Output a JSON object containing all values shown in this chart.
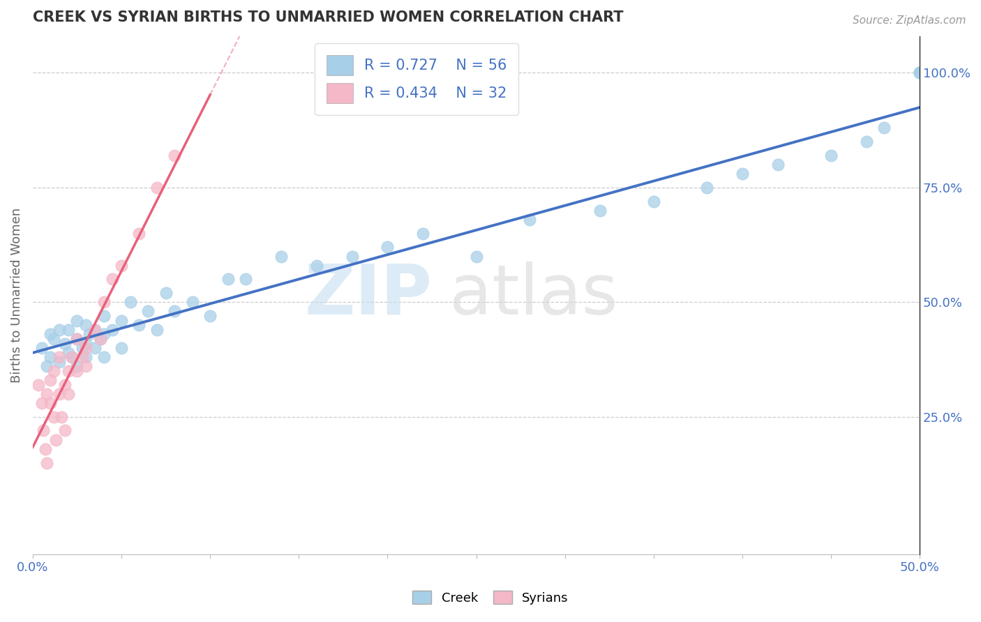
{
  "title": "CREEK VS SYRIAN BIRTHS TO UNMARRIED WOMEN CORRELATION CHART",
  "source_text": "Source: ZipAtlas.com",
  "ylabel": "Births to Unmarried Women",
  "xlim": [
    0.0,
    0.5
  ],
  "ylim": [
    -0.05,
    1.08
  ],
  "creek_R": "0.727",
  "creek_N": "56",
  "syrian_R": "0.434",
  "syrian_N": "32",
  "creek_color": "#a8cfe8",
  "syrian_color": "#f4b8c8",
  "creek_line_color": "#4472c4",
  "syrian_line_color": "#e8607a",
  "legend_creek_label": "Creek",
  "legend_syrian_label": "Syrians",
  "ytick_positions": [
    0.25,
    0.5,
    0.75,
    1.0
  ],
  "ytick_labels": [
    "25.0%",
    "50.0%",
    "75.0%",
    "100.0%"
  ],
  "xtick_positions": [
    0.0,
    0.05,
    0.1,
    0.15,
    0.2,
    0.25,
    0.3,
    0.35,
    0.4,
    0.45,
    0.5
  ],
  "creek_scatter_x": [
    0.005,
    0.008,
    0.01,
    0.01,
    0.012,
    0.015,
    0.015,
    0.018,
    0.02,
    0.02,
    0.022,
    0.025,
    0.025,
    0.025,
    0.028,
    0.03,
    0.03,
    0.03,
    0.032,
    0.035,
    0.035,
    0.038,
    0.04,
    0.04,
    0.04,
    0.045,
    0.05,
    0.05,
    0.055,
    0.06,
    0.065,
    0.07,
    0.075,
    0.08,
    0.09,
    0.1,
    0.11,
    0.12,
    0.14,
    0.16,
    0.18,
    0.2,
    0.22,
    0.25,
    0.28,
    0.32,
    0.35,
    0.38,
    0.4,
    0.42,
    0.45,
    0.47,
    0.48,
    0.5,
    0.5,
    0.5
  ],
  "creek_scatter_y": [
    0.4,
    0.36,
    0.38,
    0.43,
    0.42,
    0.37,
    0.44,
    0.41,
    0.39,
    0.44,
    0.38,
    0.36,
    0.42,
    0.46,
    0.4,
    0.38,
    0.41,
    0.45,
    0.43,
    0.4,
    0.44,
    0.42,
    0.38,
    0.43,
    0.47,
    0.44,
    0.4,
    0.46,
    0.5,
    0.45,
    0.48,
    0.44,
    0.52,
    0.48,
    0.5,
    0.47,
    0.55,
    0.55,
    0.6,
    0.58,
    0.6,
    0.62,
    0.65,
    0.6,
    0.68,
    0.7,
    0.72,
    0.75,
    0.78,
    0.8,
    0.82,
    0.85,
    0.88,
    1.0,
    1.0,
    1.0
  ],
  "syrian_scatter_x": [
    0.003,
    0.005,
    0.006,
    0.007,
    0.008,
    0.008,
    0.01,
    0.01,
    0.012,
    0.012,
    0.013,
    0.015,
    0.015,
    0.016,
    0.018,
    0.018,
    0.02,
    0.02,
    0.022,
    0.025,
    0.025,
    0.028,
    0.03,
    0.03,
    0.035,
    0.038,
    0.04,
    0.045,
    0.05,
    0.06,
    0.07,
    0.08
  ],
  "syrian_scatter_y": [
    0.32,
    0.28,
    0.22,
    0.18,
    0.3,
    0.15,
    0.33,
    0.28,
    0.25,
    0.35,
    0.2,
    0.3,
    0.38,
    0.25,
    0.32,
    0.22,
    0.35,
    0.3,
    0.38,
    0.35,
    0.42,
    0.38,
    0.4,
    0.36,
    0.44,
    0.42,
    0.5,
    0.55,
    0.58,
    0.65,
    0.75,
    0.82
  ]
}
